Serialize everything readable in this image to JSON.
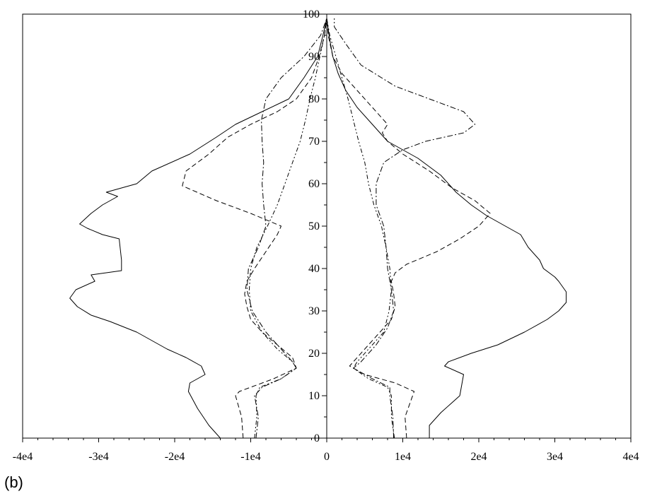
{
  "caption": "(b)",
  "chart_data": {
    "type": "line",
    "title": "",
    "xlabel": "",
    "ylabel": "",
    "xlim": [
      -40000,
      40000
    ],
    "ylim": [
      0,
      100
    ],
    "grid": false,
    "legend": "none",
    "x_ticks": [
      {
        "value": -40000,
        "label": "-4e4"
      },
      {
        "value": -30000,
        "label": "-3e4"
      },
      {
        "value": -20000,
        "label": "-2e4"
      },
      {
        "value": -10000,
        "label": "-1e4"
      },
      {
        "value": 0,
        "label": "0"
      },
      {
        "value": 10000,
        "label": "1e4"
      },
      {
        "value": 20000,
        "label": "2e4"
      },
      {
        "value": 30000,
        "label": "3e4"
      },
      {
        "value": 40000,
        "label": "4e4"
      }
    ],
    "y_ticks": [
      {
        "value": 0,
        "label": "0"
      },
      {
        "value": 10,
        "label": "10"
      },
      {
        "value": 20,
        "label": "20"
      },
      {
        "value": 30,
        "label": "30"
      },
      {
        "value": 40,
        "label": "40"
      },
      {
        "value": 50,
        "label": "50"
      },
      {
        "value": 60,
        "label": "60"
      },
      {
        "value": 70,
        "label": "70"
      },
      {
        "value": 80,
        "label": "80"
      },
      {
        "value": 90,
        "label": "90"
      },
      {
        "value": 100,
        "label": "100"
      }
    ],
    "series": [
      {
        "style": "solid",
        "left": [
          [
            -14000,
            0
          ],
          [
            -15500,
            3
          ],
          [
            -17000,
            7
          ],
          [
            -18200,
            11
          ],
          [
            -18000,
            13
          ],
          [
            -16000,
            15
          ],
          [
            -16500,
            17
          ],
          [
            -18500,
            19
          ],
          [
            -21000,
            21
          ],
          [
            -25000,
            25
          ],
          [
            -28500,
            27.5
          ],
          [
            -31000,
            29
          ],
          [
            -32800,
            31
          ],
          [
            -33800,
            33
          ],
          [
            -33000,
            35
          ],
          [
            -30500,
            37
          ],
          [
            -31000,
            38.5
          ],
          [
            -27000,
            39.5
          ],
          [
            -27000,
            42
          ],
          [
            -27300,
            47
          ],
          [
            -29500,
            48
          ],
          [
            -31500,
            49.5
          ],
          [
            -32500,
            50.5
          ],
          [
            -31000,
            53
          ],
          [
            -29500,
            55
          ],
          [
            -27500,
            57
          ],
          [
            -29000,
            58
          ],
          [
            -25000,
            60
          ],
          [
            -23000,
            63
          ],
          [
            -18000,
            67
          ],
          [
            -14500,
            71
          ],
          [
            -12000,
            74
          ],
          [
            -8500,
            77
          ],
          [
            -5000,
            80
          ],
          [
            -3000,
            85
          ],
          [
            -1200,
            90
          ],
          [
            -500,
            95
          ],
          [
            0,
            99
          ]
        ],
        "right": [
          [
            13500,
            0
          ],
          [
            13500,
            3
          ],
          [
            15000,
            6
          ],
          [
            17500,
            10
          ],
          [
            18000,
            15
          ],
          [
            15500,
            17
          ],
          [
            16000,
            18
          ],
          [
            19000,
            20
          ],
          [
            22500,
            22
          ],
          [
            26000,
            25
          ],
          [
            29000,
            28
          ],
          [
            30500,
            30
          ],
          [
            31500,
            32
          ],
          [
            31500,
            34.5
          ],
          [
            30500,
            37
          ],
          [
            30000,
            38
          ],
          [
            28500,
            40
          ],
          [
            28000,
            42
          ],
          [
            26500,
            45
          ],
          [
            25500,
            48
          ],
          [
            23500,
            50
          ],
          [
            21000,
            52.5
          ],
          [
            19000,
            55
          ],
          [
            17000,
            58
          ],
          [
            15000,
            62
          ],
          [
            12000,
            66
          ],
          [
            8000,
            70
          ],
          [
            6000,
            74
          ],
          [
            4000,
            78
          ],
          [
            2500,
            82
          ],
          [
            1500,
            86
          ],
          [
            800,
            90
          ],
          [
            300,
            95
          ],
          [
            0,
            99
          ]
        ]
      },
      {
        "style": "dashed",
        "left": [
          [
            -11000,
            0
          ],
          [
            -11200,
            5
          ],
          [
            -12000,
            10
          ],
          [
            -11500,
            11
          ],
          [
            -7000,
            14
          ],
          [
            -4000,
            16.5
          ],
          [
            -4500,
            19
          ],
          [
            -6500,
            22
          ],
          [
            -8500,
            25
          ],
          [
            -10000,
            28
          ],
          [
            -10500,
            31
          ],
          [
            -10800,
            34
          ],
          [
            -10500,
            37
          ],
          [
            -9500,
            40
          ],
          [
            -8000,
            44
          ],
          [
            -6500,
            48
          ],
          [
            -6000,
            50
          ],
          [
            -10000,
            53
          ],
          [
            -14500,
            56
          ],
          [
            -19000,
            59.5
          ],
          [
            -18500,
            63
          ],
          [
            -15500,
            67
          ],
          [
            -13000,
            71
          ],
          [
            -10000,
            74
          ],
          [
            -6500,
            77
          ],
          [
            -4000,
            80
          ],
          [
            -2000,
            85
          ],
          [
            -1000,
            90
          ],
          [
            -300,
            95
          ],
          [
            0,
            99
          ]
        ],
        "right": [
          [
            10500,
            0
          ],
          [
            10300,
            5
          ],
          [
            11500,
            11
          ],
          [
            9000,
            13
          ],
          [
            5000,
            15
          ],
          [
            3000,
            17
          ],
          [
            4000,
            19
          ],
          [
            5500,
            22
          ],
          [
            7000,
            25
          ],
          [
            8500,
            28
          ],
          [
            9000,
            31
          ],
          [
            8800,
            34
          ],
          [
            8500,
            37
          ],
          [
            9000,
            39
          ],
          [
            10500,
            41
          ],
          [
            14500,
            44
          ],
          [
            17500,
            47
          ],
          [
            20000,
            50
          ],
          [
            21500,
            53
          ],
          [
            19500,
            56
          ],
          [
            16500,
            59
          ],
          [
            13500,
            63
          ],
          [
            10000,
            67
          ],
          [
            8000,
            70
          ],
          [
            7300,
            72
          ],
          [
            8000,
            74
          ],
          [
            6000,
            78
          ],
          [
            4000,
            82
          ],
          [
            2000,
            86
          ],
          [
            800,
            90
          ],
          [
            200,
            95
          ],
          [
            0,
            99
          ]
        ]
      },
      {
        "style": "dash-dot",
        "left": [
          [
            -9300,
            0
          ],
          [
            -9000,
            5
          ],
          [
            -9500,
            10
          ],
          [
            -8500,
            12
          ],
          [
            -6000,
            14
          ],
          [
            -4000,
            16.5
          ],
          [
            -4500,
            18
          ],
          [
            -6000,
            21
          ],
          [
            -8000,
            25
          ],
          [
            -9800,
            30
          ],
          [
            -10500,
            35
          ],
          [
            -10300,
            40
          ],
          [
            -9000,
            45
          ],
          [
            -8000,
            50
          ],
          [
            -8300,
            55
          ],
          [
            -8500,
            60
          ],
          [
            -8300,
            65
          ],
          [
            -8500,
            70
          ],
          [
            -8600,
            75
          ],
          [
            -8000,
            80
          ],
          [
            -6000,
            85
          ],
          [
            -3000,
            90
          ],
          [
            -800,
            95
          ],
          [
            0,
            99
          ]
        ],
        "right": [
          [
            8800,
            0
          ],
          [
            8700,
            5
          ],
          [
            8300,
            10
          ],
          [
            8300,
            12
          ],
          [
            6000,
            14
          ],
          [
            3500,
            16.5
          ],
          [
            4500,
            18
          ],
          [
            6500,
            22
          ],
          [
            8000,
            26
          ],
          [
            8800,
            30
          ],
          [
            8500,
            35
          ],
          [
            8000,
            40
          ],
          [
            7800,
            45
          ],
          [
            7500,
            50
          ],
          [
            6500,
            55
          ],
          [
            6500,
            60
          ],
          [
            7500,
            65
          ],
          [
            10000,
            68
          ],
          [
            13000,
            70
          ],
          [
            18000,
            72
          ],
          [
            19500,
            74
          ],
          [
            18000,
            77
          ],
          [
            13500,
            80
          ],
          [
            9000,
            83
          ],
          [
            4500,
            88
          ],
          [
            2500,
            93
          ],
          [
            1000,
            97
          ],
          [
            1000,
            99
          ]
        ]
      },
      {
        "style": "dash-dot-dot",
        "left": [
          [
            -9500,
            0
          ],
          [
            -9200,
            5
          ],
          [
            -9300,
            10
          ],
          [
            -8800,
            12
          ],
          [
            -6000,
            14
          ],
          [
            -4000,
            16.5
          ],
          [
            -4500,
            18
          ],
          [
            -6500,
            21
          ],
          [
            -8500,
            25
          ],
          [
            -10000,
            30
          ],
          [
            -10200,
            35
          ],
          [
            -10000,
            40
          ],
          [
            -9200,
            45
          ],
          [
            -7800,
            50
          ],
          [
            -6500,
            55
          ],
          [
            -5500,
            60
          ],
          [
            -4500,
            65
          ],
          [
            -3500,
            70
          ],
          [
            -2800,
            75
          ],
          [
            -2200,
            80
          ],
          [
            -1500,
            85
          ],
          [
            -900,
            90
          ],
          [
            -300,
            95
          ],
          [
            0,
            99
          ]
        ],
        "right": [
          [
            8900,
            0
          ],
          [
            8500,
            5
          ],
          [
            8500,
            10
          ],
          [
            8000,
            12
          ],
          [
            5500,
            14
          ],
          [
            3500,
            16.5
          ],
          [
            4000,
            18
          ],
          [
            5500,
            21
          ],
          [
            7500,
            25
          ],
          [
            8200,
            30
          ],
          [
            8500,
            35
          ],
          [
            8300,
            40
          ],
          [
            7800,
            45
          ],
          [
            7200,
            50
          ],
          [
            6200,
            55
          ],
          [
            5500,
            60
          ],
          [
            5000,
            65
          ],
          [
            4200,
            70
          ],
          [
            3500,
            75
          ],
          [
            2800,
            80
          ],
          [
            2000,
            85
          ],
          [
            1200,
            90
          ],
          [
            400,
            95
          ],
          [
            0,
            99
          ]
        ]
      }
    ]
  }
}
